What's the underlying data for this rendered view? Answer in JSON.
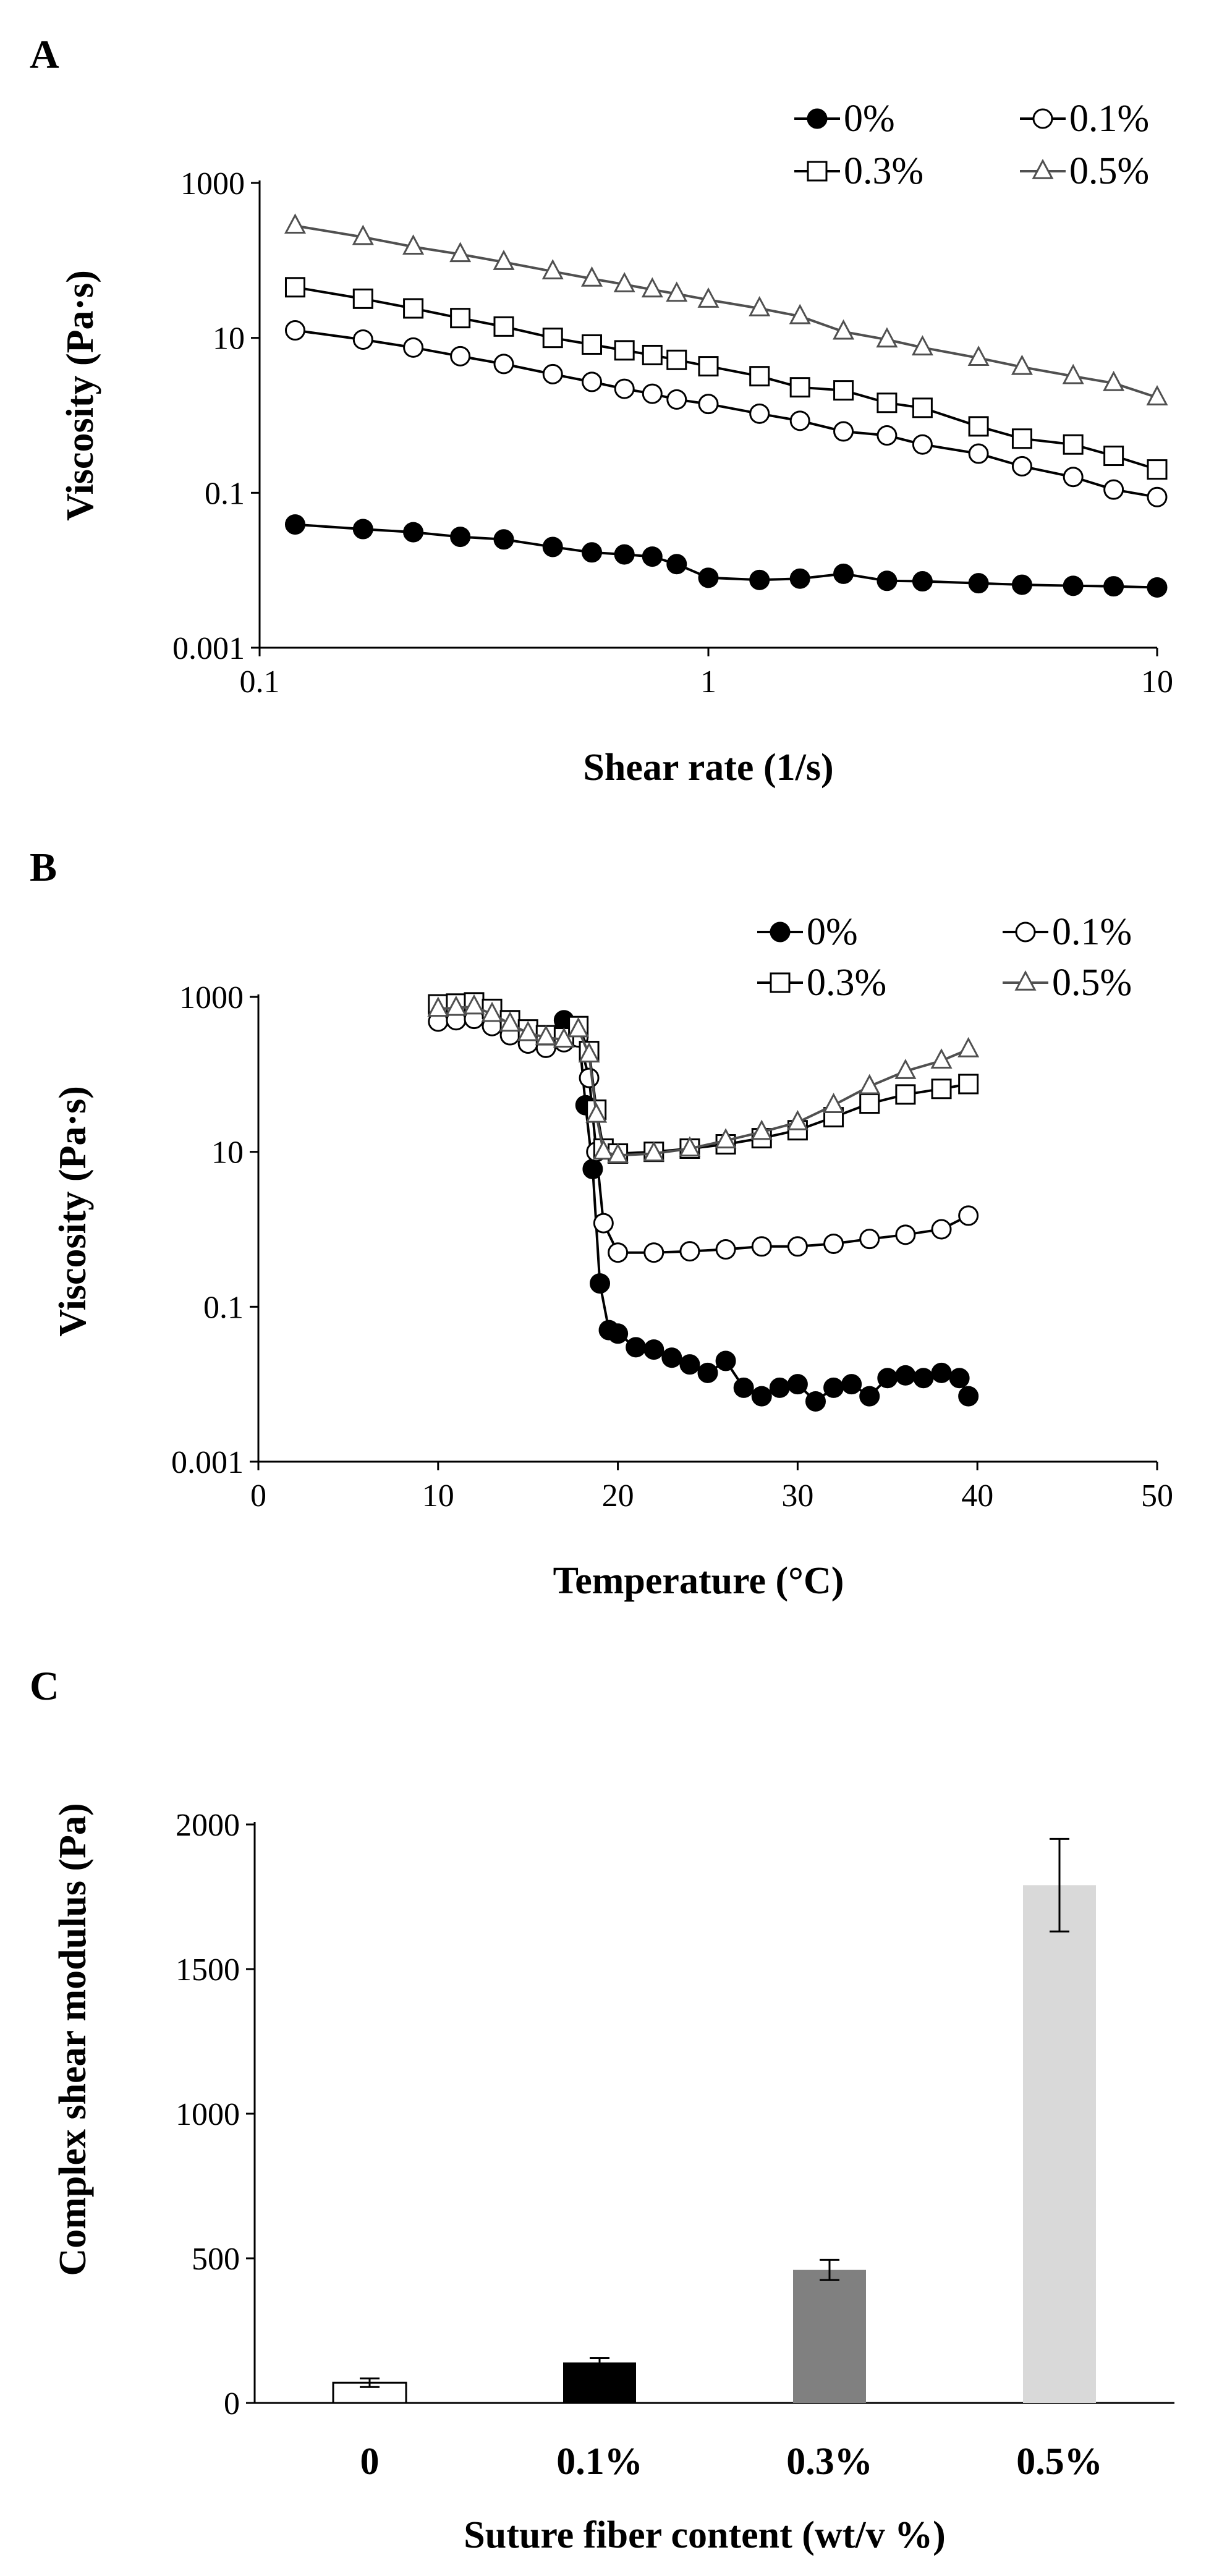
{
  "figure_title": "",
  "panels": {
    "A": {
      "letter": "A"
    },
    "B": {
      "letter": "B"
    },
    "C": {
      "letter": "C"
    }
  },
  "chart_data": [
    {
      "id": "A",
      "type": "line",
      "xscale": "log",
      "yscale": "log",
      "xlabel": "Shear rate (1/s)",
      "ylabel": "Viscosity (Pa·s)",
      "xlim": [
        0.1,
        10
      ],
      "ylim": [
        0.001,
        1000
      ],
      "xticks": [
        0.1,
        1,
        10
      ],
      "xtick_labels": [
        "0.1",
        "1",
        "10"
      ],
      "yticks": [
        0.001,
        0.1,
        10,
        1000
      ],
      "ytick_labels": [
        "0.001",
        "0.1",
        "10",
        "1000"
      ],
      "legend_position": "top-right",
      "series": [
        {
          "name": "0%",
          "marker": "filled-circle",
          "color": "#000000",
          "x": [
            0.12,
            0.17,
            0.22,
            0.28,
            0.35,
            0.45,
            0.55,
            0.65,
            0.75,
            0.85,
            1.0,
            1.3,
            1.6,
            2.0,
            2.5,
            3.0,
            4.0,
            5.0,
            6.5,
            8.0,
            10.0
          ],
          "y": [
            0.039,
            0.034,
            0.031,
            0.027,
            0.025,
            0.02,
            0.017,
            0.016,
            0.015,
            0.012,
            0.008,
            0.0075,
            0.0078,
            0.009,
            0.0073,
            0.0072,
            0.0068,
            0.0065,
            0.0063,
            0.0062,
            0.006
          ]
        },
        {
          "name": "0.1%",
          "marker": "open-circle",
          "color": "#000000",
          "x": [
            0.12,
            0.17,
            0.22,
            0.28,
            0.35,
            0.45,
            0.55,
            0.65,
            0.75,
            0.85,
            1.0,
            1.3,
            1.6,
            2.0,
            2.5,
            3.0,
            4.0,
            5.0,
            6.5,
            8.0,
            10.0
          ],
          "y": [
            12.5,
            9.5,
            7.5,
            5.8,
            4.6,
            3.4,
            2.7,
            2.2,
            1.9,
            1.6,
            1.4,
            1.05,
            0.85,
            0.62,
            0.55,
            0.42,
            0.32,
            0.22,
            0.16,
            0.11,
            0.088
          ]
        },
        {
          "name": "0.3%",
          "marker": "open-square",
          "color": "#000000",
          "x": [
            0.12,
            0.17,
            0.22,
            0.28,
            0.35,
            0.45,
            0.55,
            0.65,
            0.75,
            0.85,
            1.0,
            1.3,
            1.6,
            2.0,
            2.5,
            3.0,
            4.0,
            5.0,
            6.5,
            8.0,
            10.0
          ],
          "y": [
            45,
            32,
            24,
            18,
            14,
            10,
            8.2,
            6.9,
            6.0,
            5.2,
            4.3,
            3.2,
            2.3,
            2.1,
            1.45,
            1.25,
            0.72,
            0.5,
            0.42,
            0.3,
            0.2
          ]
        },
        {
          "name": "0.5%",
          "marker": "open-triangle",
          "color": "#000000",
          "x": [
            0.12,
            0.17,
            0.22,
            0.28,
            0.35,
            0.45,
            0.55,
            0.65,
            0.75,
            0.85,
            1.0,
            1.3,
            1.6,
            2.0,
            2.5,
            3.0,
            4.0,
            5.0,
            6.5,
            8.0,
            10.0
          ],
          "y": [
            280,
            200,
            150,
            120,
            95,
            72,
            58,
            49,
            42,
            37,
            31,
            24,
            19,
            12,
            9.5,
            7.5,
            5.5,
            4.2,
            3.2,
            2.6,
            1.7
          ]
        }
      ]
    },
    {
      "id": "B",
      "type": "line",
      "xscale": "linear",
      "yscale": "log",
      "xlabel": "Temperature (°C)",
      "ylabel": "Viscosity (Pa·s)",
      "xlim": [
        0,
        50
      ],
      "ylim": [
        0.001,
        1000
      ],
      "xticks": [
        0,
        10,
        20,
        30,
        40,
        50
      ],
      "xtick_labels": [
        "0",
        "10",
        "20",
        "30",
        "40",
        "50"
      ],
      "yticks": [
        0.001,
        0.1,
        10,
        1000
      ],
      "ytick_labels": [
        "0.001",
        "0.1",
        "10",
        "1000"
      ],
      "legend_position": "top-right",
      "series": [
        {
          "name": "0%",
          "marker": "filled-circle",
          "color": "#000000",
          "x": [
            10,
            11,
            12,
            13,
            14,
            15,
            16,
            17,
            17.8,
            18.2,
            18.6,
            19.0,
            19.5,
            20,
            21,
            22,
            23,
            24,
            25,
            26,
            27,
            28,
            29,
            30,
            31,
            32,
            33,
            34,
            35,
            36,
            37,
            38,
            39,
            39.5
          ],
          "y": [
            650,
            600,
            550,
            450,
            350,
            250,
            280,
            500,
            400,
            40,
            6,
            0.2,
            0.05,
            0.045,
            0.03,
            0.028,
            0.022,
            0.018,
            0.014,
            0.02,
            0.009,
            0.007,
            0.009,
            0.01,
            0.006,
            0.009,
            0.01,
            0.007,
            0.012,
            0.013,
            0.012,
            0.014,
            0.012,
            0.007
          ]
        },
        {
          "name": "0.1%",
          "marker": "open-circle",
          "color": "#000000",
          "x": [
            10,
            11,
            12,
            13,
            14,
            15,
            16,
            17,
            17.8,
            18.4,
            18.8,
            19.2,
            20,
            22,
            24,
            26,
            28,
            30,
            32,
            34,
            36,
            38,
            39.5
          ],
          "y": [
            480,
            500,
            520,
            420,
            320,
            250,
            220,
            260,
            300,
            90,
            10,
            1.2,
            0.5,
            0.5,
            0.52,
            0.55,
            0.6,
            0.6,
            0.65,
            0.75,
            0.85,
            1.0,
            1.5
          ]
        },
        {
          "name": "0.3%",
          "marker": "open-square",
          "color": "#000000",
          "x": [
            10,
            11,
            12,
            13,
            14,
            15,
            16,
            17,
            17.8,
            18.4,
            18.8,
            19.2,
            20,
            22,
            24,
            26,
            28,
            30,
            32,
            34,
            36,
            38,
            39.5
          ],
          "y": [
            800,
            820,
            850,
            700,
            500,
            380,
            320,
            300,
            420,
            200,
            35,
            11,
            9.5,
            10,
            11,
            12.5,
            15,
            19,
            28,
            42,
            55,
            65,
            75
          ]
        },
        {
          "name": "0.5%",
          "marker": "open-triangle",
          "color": "#000000",
          "x": [
            10,
            11,
            12,
            13,
            14,
            15,
            16,
            17,
            17.8,
            18.4,
            18.8,
            19.2,
            20,
            22,
            24,
            26,
            28,
            30,
            32,
            34,
            36,
            38,
            39.5
          ],
          "y": [
            700,
            720,
            750,
            600,
            450,
            340,
            300,
            280,
            380,
            180,
            30,
            10,
            9,
            9.5,
            11,
            14,
            18,
            24,
            40,
            70,
            110,
            150,
            210
          ]
        }
      ]
    },
    {
      "id": "C",
      "type": "bar",
      "categories": [
        "0",
        "0.1%",
        "0.3%",
        "0.5%"
      ],
      "values": [
        70,
        140,
        460,
        1790
      ],
      "errors": [
        15,
        15,
        35,
        160
      ],
      "colors": [
        "#ffffff",
        "#000000",
        "#808080",
        "#d9d9d9"
      ],
      "xlabel": "Suture fiber content (wt/v %)",
      "ylabel": "Complex shear modulus (Pa)",
      "ylim": [
        0,
        2000
      ],
      "yticks": [
        0,
        500,
        1000,
        1500,
        2000
      ],
      "ytick_labels": [
        "0",
        "500",
        "1000",
        "1500",
        "2000"
      ]
    }
  ]
}
